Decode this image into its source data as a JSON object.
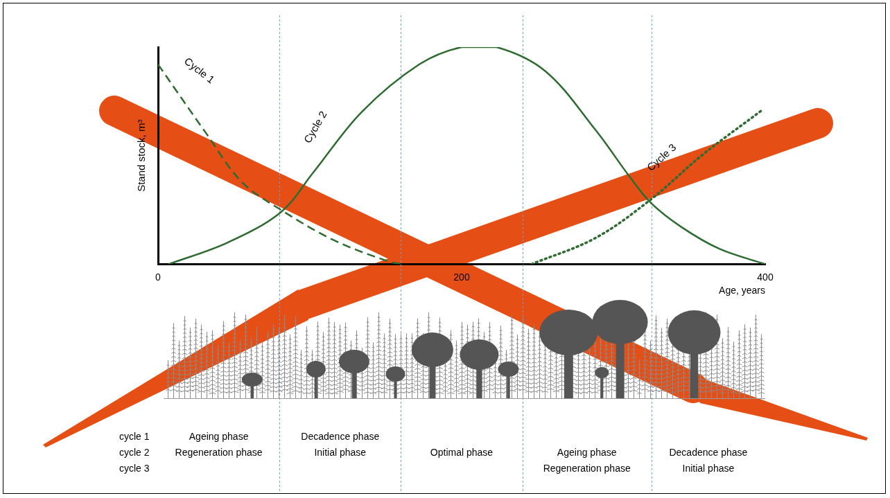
{
  "chart_data": {
    "type": "line",
    "x_label": "Age, years",
    "y_label": "Stand stock, m³",
    "xlim": [
      0,
      400
    ],
    "xticks": [
      0,
      200,
      400
    ],
    "ylim": [
      0,
      100
    ],
    "tick_labels": "x",
    "grid": false,
    "series": [
      {
        "name": "Cycle 1",
        "color": "#2e6b30",
        "line_style": "dashed",
        "x": [
          0,
          32,
          55,
          81,
          116,
          153,
          162
        ],
        "values": [
          92,
          60,
          38,
          25,
          11,
          1,
          0
        ]
      },
      {
        "name": "Cycle 2",
        "color": "#2e6b30",
        "line_style": "solid",
        "x": [
          7,
          46,
          81,
          102,
          134,
          172,
          200,
          223,
          255,
          288,
          311,
          325,
          345,
          370,
          400
        ],
        "values": [
          0,
          10,
          24,
          42,
          70,
          92,
          100,
          100,
          89,
          62,
          40,
          28,
          17,
          7,
          0
        ]
      },
      {
        "name": "Cycle 3",
        "color": "#2e6b30",
        "line_style": "dotted",
        "x": [
          246,
          288,
          325,
          358,
          398
        ],
        "values": [
          0,
          12,
          30,
          50,
          71
        ]
      }
    ],
    "annotations": [
      {
        "text": "Cycle 1",
        "x": 27,
        "y": 89
      },
      {
        "text": "Cycle 2",
        "x": 104,
        "y": 63
      },
      {
        "text": "Cycle 3",
        "x": 332,
        "y": 49
      }
    ],
    "phase_boundaries": [
      80,
      160,
      240,
      325
    ],
    "phase_table": [
      {
        "cycle": "cycle 1",
        "phases": [
          "Ageing phase",
          "Decadence phase",
          null,
          null,
          null
        ]
      },
      {
        "cycle": "cycle 2",
        "phases": [
          "Regeneration phase",
          "Initial phase",
          "Optimal phase",
          "Ageing phase",
          "Decadence phase"
        ]
      },
      {
        "cycle": "cycle 3",
        "phases": [
          null,
          null,
          null,
          "Regeneration phase",
          "Initial phase"
        ]
      }
    ]
  }
}
